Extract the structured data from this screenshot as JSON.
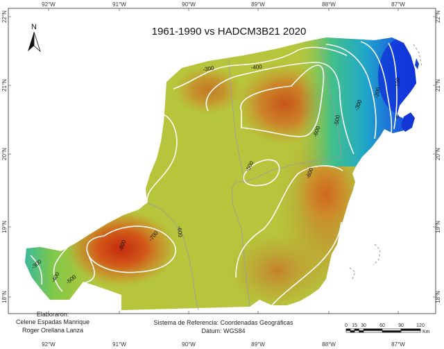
{
  "map": {
    "title": "1961-1990 vs HADCM3B21 2020",
    "north_label": "N",
    "longitude_ticks": [
      "92°W",
      "91°W",
      "90°W",
      "89°W",
      "88°W",
      "87°W"
    ],
    "latitude_ticks": [
      "22°N",
      "21°N",
      "20°N",
      "19°N",
      "18°N"
    ],
    "contour_labels": [
      "-300",
      "-400",
      "-300",
      "-200",
      "-100",
      "0",
      "-600",
      "-500",
      "-500",
      "-600",
      "-600",
      "-700",
      "-800",
      "-500",
      "-400",
      "-300",
      "0"
    ],
    "credits": {
      "heading": "Elaboraron:",
      "author1": "Celene Espadas Manrique",
      "author2": "Roger Orellana Lanza"
    },
    "reference": {
      "system": "Sistema de Referencia: Coordenadas Geográficas",
      "datum": "Datum: WGS84"
    },
    "scale_bar": {
      "ticks": [
        "0",
        "15",
        "30",
        "60",
        "90",
        "120"
      ],
      "unit": "Km"
    },
    "colors": {
      "high": "#c43c12",
      "mid": "#b8c838",
      "low": "#1040d8",
      "contour": "#ffffff",
      "border": "#9a9aa8"
    }
  }
}
